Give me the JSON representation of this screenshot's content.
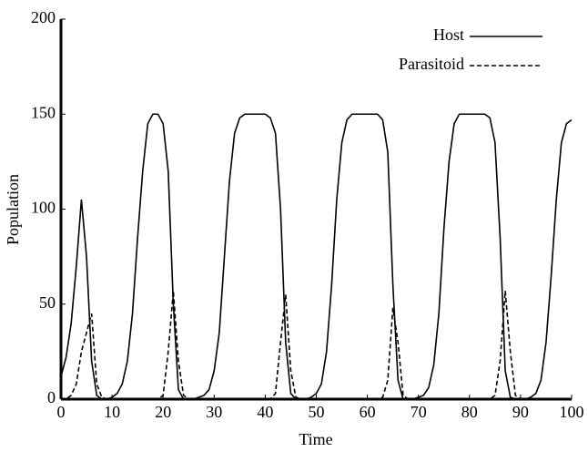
{
  "chart_data": {
    "type": "line",
    "xlabel": "Time",
    "ylabel": "Population",
    "x": [
      0,
      1,
      2,
      3,
      4,
      5,
      6,
      7,
      8,
      9,
      10,
      11,
      12,
      13,
      14,
      15,
      16,
      17,
      18,
      19,
      20,
      21,
      22,
      23,
      24,
      25,
      26,
      27,
      28,
      29,
      30,
      31,
      32,
      33,
      34,
      35,
      36,
      37,
      38,
      39,
      40,
      41,
      42,
      43,
      44,
      45,
      46,
      47,
      48,
      49,
      50,
      51,
      52,
      53,
      54,
      55,
      56,
      57,
      58,
      59,
      60,
      61,
      62,
      63,
      64,
      65,
      66,
      67,
      68,
      69,
      70,
      71,
      72,
      73,
      74,
      75,
      76,
      77,
      78,
      79,
      80,
      81,
      82,
      83,
      84,
      85,
      86,
      87,
      88,
      89,
      90,
      91,
      92,
      93,
      94,
      95,
      96,
      97,
      98,
      99,
      100
    ],
    "series": [
      {
        "name": "Host",
        "color": "#000000",
        "line_style": "solid",
        "values": [
          12,
          22,
          40,
          70,
          105,
          75,
          20,
          2,
          0,
          0,
          1,
          3,
          8,
          20,
          45,
          85,
          120,
          145,
          150,
          150,
          145,
          120,
          50,
          5,
          0,
          0,
          0,
          1,
          2,
          5,
          15,
          35,
          75,
          115,
          140,
          148,
          150,
          150,
          150,
          150,
          150,
          148,
          140,
          100,
          30,
          3,
          0,
          0,
          0,
          1,
          3,
          8,
          25,
          60,
          105,
          135,
          147,
          150,
          150,
          150,
          150,
          150,
          150,
          147,
          130,
          60,
          10,
          0,
          0,
          0,
          1,
          2,
          6,
          18,
          45,
          90,
          125,
          145,
          150,
          150,
          150,
          150,
          150,
          150,
          148,
          135,
          85,
          15,
          1,
          0,
          0,
          0,
          1,
          3,
          10,
          30,
          65,
          105,
          135,
          145,
          147
        ]
      },
      {
        "name": "Parasitoid",
        "color": "#000000",
        "line_style": "dashed",
        "values": [
          0,
          0,
          2,
          8,
          25,
          35,
          45,
          8,
          1,
          0,
          0,
          0,
          0,
          0,
          0,
          0,
          0,
          0,
          0,
          0,
          2,
          25,
          57,
          20,
          2,
          0,
          0,
          0,
          0,
          0,
          0,
          0,
          0,
          0,
          0,
          0,
          0,
          0,
          0,
          0,
          0,
          0,
          3,
          30,
          55,
          15,
          1,
          0,
          0,
          0,
          0,
          0,
          0,
          0,
          0,
          0,
          0,
          0,
          0,
          0,
          0,
          0,
          0,
          1,
          10,
          48,
          30,
          2,
          0,
          0,
          0,
          0,
          0,
          0,
          0,
          0,
          0,
          0,
          0,
          0,
          0,
          0,
          0,
          0,
          0,
          2,
          20,
          57,
          25,
          2,
          0,
          0,
          0,
          0,
          0,
          0,
          0,
          0,
          0,
          0,
          0
        ]
      }
    ],
    "xlim": [
      0,
      100
    ],
    "xticks": [
      0,
      10,
      20,
      30,
      40,
      50,
      60,
      70,
      80,
      90,
      100
    ],
    "ylim": [
      0,
      200
    ],
    "yticks": [
      0,
      50,
      100,
      150,
      200
    ],
    "legend": "upper right"
  }
}
